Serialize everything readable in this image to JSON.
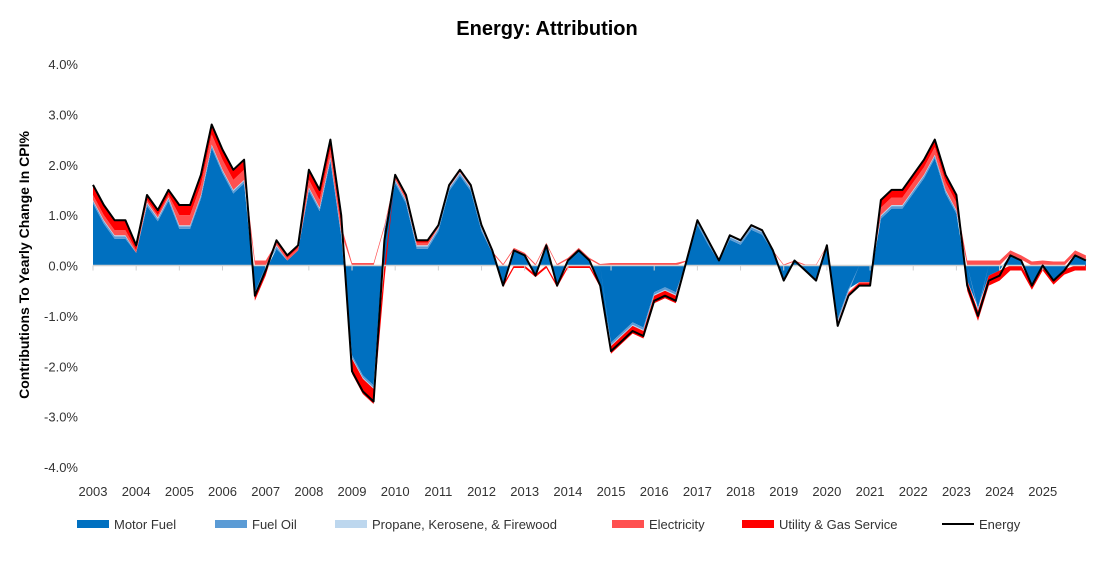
{
  "chart_data": {
    "type": "area",
    "title": "Energy: Attribution",
    "xlabel": "",
    "ylabel": "Contributions To Yearly Change In CPI%",
    "ylim": [
      -4,
      4
    ],
    "yticks": [
      "4.0%",
      "3.0%",
      "2.0%",
      "1.0%",
      "0.0%",
      "-1.0%",
      "-2.0%",
      "-3.0%",
      "-4.0%"
    ],
    "ytick_values": [
      4,
      3,
      2,
      1,
      0,
      -1,
      -2,
      -3,
      -4
    ],
    "xticks": [
      "2003",
      "2004",
      "2005",
      "2006",
      "2007",
      "2008",
      "2009",
      "2010",
      "2011",
      "2012",
      "2013",
      "2014",
      "2015",
      "2016",
      "2017",
      "2018",
      "2019",
      "2020",
      "2021",
      "2022",
      "2023",
      "2024",
      "2025"
    ],
    "x_start": 2003,
    "x_step": 0.25,
    "legend_position": "bottom",
    "grid": false,
    "series": [
      {
        "name": "Motor Fuel",
        "kind": "stacked-area",
        "color": "#0070C0",
        "values": [
          1.23,
          0.83,
          0.53,
          0.53,
          0.25,
          1.18,
          0.88,
          1.28,
          0.73,
          0.73,
          1.33,
          2.33,
          1.83,
          1.43,
          1.63,
          -0.53,
          -0.1,
          0.33,
          0.1,
          0.3,
          1.48,
          1.08,
          2.08,
          0.58,
          -1.78,
          -2.18,
          -2.38,
          0.68,
          1.63,
          1.23,
          0.33,
          0.33,
          0.68,
          1.48,
          1.78,
          1.48,
          0.68,
          0.25,
          -0.38,
          0.32,
          0.22,
          -0.18,
          0.42,
          -0.38,
          0.12,
          0.32,
          0.12,
          -0.38,
          -1.53,
          -1.33,
          -1.13,
          -1.23,
          -0.53,
          -0.43,
          -0.53,
          0.08,
          0.81,
          0.41,
          0.08,
          0.51,
          0.41,
          0.71,
          0.61,
          0.28,
          -0.32,
          0.08,
          -0.12,
          -0.32,
          0.38,
          -1.06,
          -0.46,
          -0.33,
          -0.33,
          0.93,
          1.13,
          1.13,
          1.43,
          1.73,
          2.13,
          1.43,
          1.03,
          -0.3,
          -0.83,
          -0.2,
          -0.1,
          0.22,
          0.12,
          -0.38,
          0.02,
          -0.28,
          -0.08,
          0.22,
          0.12
        ]
      },
      {
        "name": "Fuel Oil",
        "kind": "stacked-area",
        "color": "#5B9BD5",
        "values": [
          0.05,
          0.05,
          0.05,
          0.05,
          0,
          0.05,
          0.05,
          0.05,
          0.05,
          0.05,
          0.05,
          0.05,
          0.05,
          0.05,
          0.05,
          -0.05,
          0,
          0.05,
          0,
          0,
          0.05,
          0.05,
          0.05,
          0.05,
          -0.05,
          -0.05,
          -0.05,
          0.05,
          0.05,
          0.05,
          0.05,
          0.05,
          0.05,
          0.05,
          0.05,
          0.05,
          0.05,
          0,
          0,
          0,
          0,
          0,
          0,
          0,
          0,
          0,
          0,
          0,
          -0.05,
          -0.05,
          -0.05,
          -0.05,
          -0.05,
          -0.05,
          -0.05,
          0,
          0.05,
          0.05,
          0,
          0.05,
          0.05,
          0.05,
          0.05,
          0,
          0,
          0,
          0,
          0,
          0,
          -0.05,
          -0.05,
          0,
          0,
          0.05,
          0.05,
          0.05,
          0.05,
          0.05,
          0.05,
          0.05,
          0.05,
          0,
          -0.05,
          0,
          0,
          0,
          0,
          0,
          0,
          0,
          0,
          0,
          0
        ]
      },
      {
        "name": "Propane, Kerosene, & Firewood",
        "kind": "stacked-area",
        "color": "#BDD7EE",
        "values": [
          0.02,
          0.02,
          0.02,
          0.02,
          0,
          0.02,
          0.02,
          0.02,
          0.02,
          0.02,
          0.02,
          0.02,
          0.02,
          0.02,
          0.02,
          -0.02,
          0,
          0.02,
          0,
          0,
          0.02,
          0.02,
          0.02,
          0.02,
          -0.02,
          -0.02,
          -0.02,
          0.02,
          0.02,
          0.02,
          0.02,
          0.02,
          0.02,
          0.02,
          0.02,
          0.02,
          0.02,
          0,
          0,
          0,
          0,
          0,
          0,
          0,
          0,
          0,
          0,
          0,
          -0.02,
          -0.02,
          -0.02,
          -0.02,
          -0.02,
          -0.02,
          -0.02,
          0,
          0.02,
          0.02,
          0,
          0.02,
          0.02,
          0.02,
          0.02,
          0,
          0,
          0,
          0,
          0,
          0,
          -0.02,
          -0.02,
          0,
          0,
          0.02,
          0.02,
          0.02,
          0.02,
          0.02,
          0.02,
          0.02,
          0.02,
          0,
          -0.02,
          0,
          0,
          0,
          0,
          0,
          0,
          0,
          0,
          0,
          0
        ]
      },
      {
        "name": "Electricity",
        "kind": "stacked-area",
        "color": "#FF5050",
        "values": [
          0.1,
          0.1,
          0.1,
          0.1,
          0.05,
          0.05,
          0.05,
          0.05,
          0.2,
          0.2,
          0.2,
          0.2,
          0.2,
          0.2,
          0.2,
          0.1,
          0.1,
          0.05,
          0.05,
          0.05,
          0.15,
          0.15,
          0.15,
          0.15,
          0.05,
          0.05,
          0.05,
          0.05,
          0.05,
          0.05,
          0.05,
          0.05,
          0.03,
          0.03,
          0.03,
          0.03,
          0.03,
          0.03,
          0.03,
          0.03,
          0.03,
          0.03,
          0.03,
          0.03,
          0.03,
          0.03,
          0.03,
          0.03,
          0.05,
          0.05,
          0.05,
          0.05,
          0.05,
          0.05,
          0.05,
          0.02,
          0.02,
          0.02,
          0.02,
          0.02,
          0.02,
          0.02,
          0.02,
          0.02,
          0.02,
          0.02,
          0.02,
          0.02,
          0.02,
          -0.02,
          -0.02,
          -0.02,
          -0.02,
          0.15,
          0.15,
          0.15,
          0.15,
          0.15,
          0.15,
          0.15,
          0.15,
          0.1,
          0.1,
          0.1,
          0.1,
          0.08,
          0.08,
          0.08,
          0.08,
          0.08,
          0.08,
          0.08,
          0.08
        ]
      },
      {
        "name": "Utility & Gas Service",
        "kind": "stacked-area",
        "color": "#FF0000",
        "values": [
          0.2,
          0.2,
          0.2,
          0.2,
          0.1,
          0.1,
          0.1,
          0.1,
          0.2,
          0.2,
          0.2,
          0.2,
          0.2,
          0.2,
          0.2,
          -0.1,
          -0.1,
          0.05,
          0.05,
          0.05,
          0.2,
          0.2,
          0.2,
          0.2,
          -0.3,
          -0.3,
          -0.3,
          -0.3,
          0.05,
          0.05,
          0.05,
          0.05,
          0.02,
          0.02,
          0.02,
          0.02,
          0.02,
          0.02,
          -0.05,
          -0.05,
          -0.05,
          -0.05,
          -0.05,
          -0.05,
          -0.05,
          -0.05,
          -0.05,
          -0.05,
          -0.15,
          -0.15,
          -0.15,
          -0.15,
          -0.15,
          -0.15,
          -0.15,
          0,
          0,
          0,
          0,
          0,
          0,
          0,
          0,
          0,
          0,
          0,
          0,
          0,
          0,
          -0.05,
          -0.05,
          -0.05,
          -0.05,
          0.15,
          0.15,
          0.15,
          0.15,
          0.15,
          0.15,
          0.15,
          0.15,
          -0.2,
          -0.2,
          -0.2,
          -0.2,
          -0.1,
          -0.1,
          -0.1,
          -0.1,
          -0.1,
          -0.1,
          -0.1,
          -0.1
        ]
      },
      {
        "name": "Energy",
        "kind": "line",
        "color": "#000000",
        "values": [
          1.6,
          1.2,
          0.9,
          0.9,
          0.4,
          1.4,
          1.1,
          1.5,
          1.2,
          1.2,
          1.8,
          2.8,
          2.3,
          1.9,
          2.1,
          -0.6,
          -0.1,
          0.5,
          0.2,
          0.4,
          1.9,
          1.5,
          2.5,
          1.0,
          -2.1,
          -2.5,
          -2.7,
          0.5,
          1.8,
          1.4,
          0.5,
          0.5,
          0.8,
          1.6,
          1.9,
          1.6,
          0.8,
          0.3,
          -0.4,
          0.3,
          0.2,
          -0.2,
          0.4,
          -0.4,
          0.1,
          0.3,
          0.1,
          -0.4,
          -1.7,
          -1.5,
          -1.3,
          -1.4,
          -0.7,
          -0.6,
          -0.7,
          0.1,
          0.9,
          0.5,
          0.1,
          0.6,
          0.5,
          0.8,
          0.7,
          0.3,
          -0.3,
          0.1,
          -0.1,
          -0.3,
          0.4,
          -1.2,
          -0.6,
          -0.4,
          -0.4,
          1.3,
          1.5,
          1.5,
          1.8,
          2.1,
          2.5,
          1.8,
          1.4,
          -0.4,
          -1.0,
          -0.3,
          -0.2,
          0.2,
          0.1,
          -0.4,
          0.0,
          -0.3,
          -0.1,
          0.2,
          0.1
        ]
      }
    ]
  }
}
